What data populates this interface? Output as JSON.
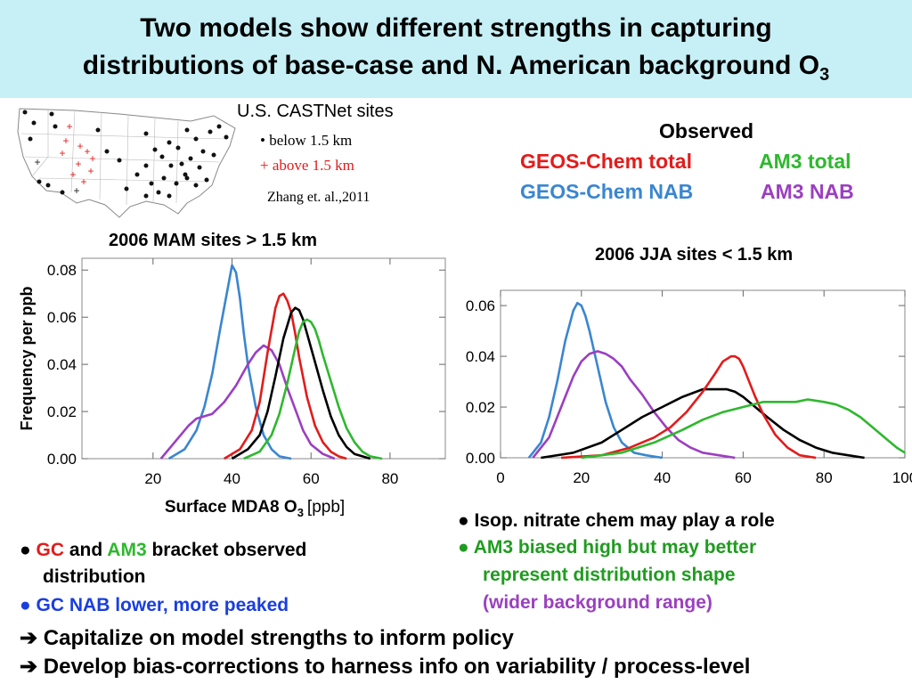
{
  "title": {
    "line1": "Two models show different strengths in capturing",
    "line2": "distributions of base-case and N. American background O",
    "line2_sub": "3"
  },
  "map": {
    "heading": "U.S. CASTNet sites",
    "legend_below": "• below 1.5 km",
    "legend_above": "+ above 1.5 km",
    "citation": "Zhang et. al.,2011"
  },
  "legend": {
    "observed": "Observed",
    "gc_total": "GEOS-Chem total",
    "am3_total": "AM3 total",
    "gc_nab": "GEOS-Chem NAB",
    "am3_nab": "AM3 NAB"
  },
  "colors": {
    "observed": "#000000",
    "gc_total": "#e31b1b",
    "am3_total": "#2eb82e",
    "gc_nab": "#3a86d0",
    "am3_nab": "#9b3fc0"
  },
  "chart_data": [
    {
      "type": "line",
      "title": "2006 MAM  sites > 1.5 km",
      "xlabel": "Surface MDA8 O",
      "xlabel_sub": "3",
      "xlabel_unit": "[ppb]",
      "ylabel": "Frequency per ppb",
      "xlim": [
        2,
        94
      ],
      "ylim": [
        0,
        0.085
      ],
      "xticks": [
        20,
        40,
        60,
        80
      ],
      "yticks": [
        0.0,
        0.02,
        0.04,
        0.06,
        0.08
      ],
      "ytick_labels": [
        "0.00",
        "0.02",
        "0.04",
        "0.06",
        "0.08"
      ],
      "series": [
        {
          "key": "gc_nab",
          "x": [
            24,
            28,
            31,
            33,
            35,
            37,
            39,
            40,
            41,
            42,
            43,
            44,
            46,
            48,
            50,
            52,
            55
          ],
          "y": [
            0.0,
            0.004,
            0.012,
            0.022,
            0.036,
            0.055,
            0.073,
            0.082,
            0.079,
            0.068,
            0.053,
            0.04,
            0.022,
            0.01,
            0.004,
            0.001,
            0.0
          ]
        },
        {
          "key": "am3_nab",
          "x": [
            22,
            26,
            29,
            31,
            33,
            35,
            38,
            41,
            44,
            46,
            48,
            50,
            52,
            54,
            56,
            58,
            60,
            63,
            66
          ],
          "y": [
            0.0,
            0.008,
            0.014,
            0.017,
            0.018,
            0.019,
            0.024,
            0.031,
            0.04,
            0.045,
            0.048,
            0.046,
            0.04,
            0.03,
            0.021,
            0.012,
            0.006,
            0.002,
            0.0
          ]
        },
        {
          "key": "gc_total",
          "x": [
            38,
            42,
            45,
            47,
            49,
            51,
            52,
            53,
            54,
            55,
            56,
            57,
            59,
            61,
            63,
            65,
            67,
            69
          ],
          "y": [
            0.0,
            0.004,
            0.012,
            0.024,
            0.045,
            0.064,
            0.069,
            0.07,
            0.067,
            0.062,
            0.053,
            0.043,
            0.026,
            0.014,
            0.007,
            0.003,
            0.001,
            0.0
          ]
        },
        {
          "key": "observed",
          "x": [
            40,
            44,
            47,
            49,
            51,
            53,
            55,
            56,
            57,
            58,
            59,
            61,
            63,
            65,
            67,
            69,
            71,
            73,
            75
          ],
          "y": [
            0.0,
            0.004,
            0.01,
            0.02,
            0.035,
            0.051,
            0.062,
            0.064,
            0.063,
            0.059,
            0.053,
            0.041,
            0.029,
            0.018,
            0.01,
            0.005,
            0.002,
            0.001,
            0.0
          ]
        },
        {
          "key": "am3_total",
          "x": [
            43,
            47,
            50,
            52,
            54,
            56,
            57,
            58,
            59,
            60,
            61,
            62,
            63,
            65,
            67,
            69,
            71,
            73,
            75,
            78
          ],
          "y": [
            0.0,
            0.003,
            0.01,
            0.019,
            0.032,
            0.047,
            0.054,
            0.058,
            0.059,
            0.058,
            0.055,
            0.05,
            0.044,
            0.033,
            0.022,
            0.013,
            0.007,
            0.003,
            0.001,
            0.0
          ]
        }
      ]
    },
    {
      "type": "line",
      "title": "2006 JJA  sites < 1.5 km",
      "xlabel": "",
      "ylabel": "",
      "xlim": [
        0,
        100
      ],
      "ylim": [
        0,
        0.066
      ],
      "xticks": [
        0,
        20,
        40,
        60,
        80,
        100
      ],
      "yticks": [
        0.0,
        0.02,
        0.04,
        0.06
      ],
      "ytick_labels": [
        "0.00",
        "0.02",
        "0.04",
        "0.06"
      ],
      "series": [
        {
          "key": "gc_nab",
          "x": [
            7,
            10,
            12,
            14,
            16,
            18,
            19,
            20,
            21,
            22,
            24,
            26,
            28,
            30,
            33,
            36,
            40
          ],
          "y": [
            0.0,
            0.006,
            0.016,
            0.03,
            0.046,
            0.058,
            0.061,
            0.06,
            0.056,
            0.05,
            0.036,
            0.022,
            0.012,
            0.006,
            0.002,
            0.001,
            0.0
          ]
        },
        {
          "key": "am3_nab",
          "x": [
            8,
            12,
            15,
            18,
            20,
            22,
            24,
            26,
            28,
            30,
            32,
            35,
            38,
            41,
            44,
            47,
            50,
            54,
            58
          ],
          "y": [
            0.0,
            0.008,
            0.02,
            0.032,
            0.038,
            0.041,
            0.042,
            0.041,
            0.039,
            0.036,
            0.031,
            0.025,
            0.018,
            0.012,
            0.007,
            0.004,
            0.002,
            0.001,
            0.0
          ]
        },
        {
          "key": "observed",
          "x": [
            10,
            18,
            25,
            30,
            35,
            40,
            45,
            50,
            53,
            56,
            58,
            60,
            63,
            66,
            70,
            74,
            78,
            82,
            86,
            90
          ],
          "y": [
            0.0,
            0.002,
            0.006,
            0.011,
            0.016,
            0.02,
            0.024,
            0.027,
            0.027,
            0.027,
            0.026,
            0.024,
            0.02,
            0.016,
            0.011,
            0.007,
            0.004,
            0.002,
            0.001,
            0.0
          ]
        },
        {
          "key": "gc_total",
          "x": [
            15,
            25,
            32,
            38,
            42,
            46,
            50,
            53,
            55,
            57,
            58,
            59,
            60,
            61,
            63,
            65,
            68,
            71,
            74,
            78
          ],
          "y": [
            0.0,
            0.001,
            0.004,
            0.008,
            0.012,
            0.018,
            0.026,
            0.033,
            0.038,
            0.04,
            0.04,
            0.039,
            0.036,
            0.032,
            0.024,
            0.017,
            0.009,
            0.004,
            0.001,
            0.0
          ]
        },
        {
          "key": "am3_total",
          "x": [
            20,
            30,
            38,
            45,
            50,
            55,
            60,
            65,
            70,
            73,
            76,
            80,
            83,
            86,
            89,
            92,
            95,
            98,
            100
          ],
          "y": [
            0.0,
            0.002,
            0.006,
            0.011,
            0.015,
            0.018,
            0.02,
            0.022,
            0.022,
            0.022,
            0.023,
            0.022,
            0.021,
            0.019,
            0.016,
            0.012,
            0.008,
            0.004,
            0.002
          ]
        }
      ]
    }
  ],
  "bullets_left": {
    "b1_gc": "GC",
    "b1_and": "and",
    "b1_am3": "AM3",
    "b1_rest": "bracket observed",
    "b1_cont": "distribution",
    "b2": "GC NAB lower, more peaked"
  },
  "bullets_right": {
    "b1": "Isop. nitrate chem may play a role",
    "b2": "AM3 biased high but may better",
    "b2_cont": "represent distribution shape",
    "b3": "(wider background range)"
  },
  "conclusions": {
    "c1": "Capitalize on model strengths to inform policy",
    "c2": "Develop bias-corrections to harness info on variability / process-level"
  }
}
